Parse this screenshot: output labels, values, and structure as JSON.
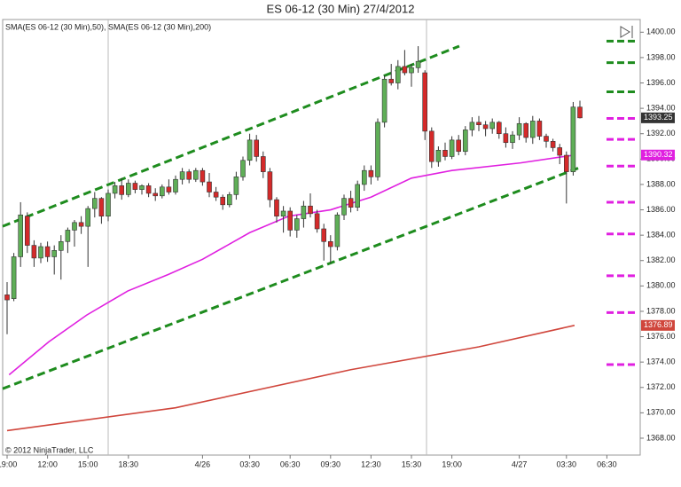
{
  "chart_data": {
    "type": "candlestick",
    "title": "ES 06-12 (30 Min)  27/4/2012",
    "indicator_legend": "SMA(ES 06-12 (30 Min),50), SMA(ES 06-12 (30 Min),200)",
    "copyright": "© 2012 NinjaTrader, LLC",
    "up_color": "#5fae57",
    "down_color": "#d42a2a",
    "categories": [
      "19:00",
      null,
      null,
      null,
      null,
      null,
      "12:00",
      null,
      null,
      null,
      null,
      null,
      "15:00",
      null,
      null,
      null,
      null,
      null,
      "18:30",
      null,
      null,
      null,
      null,
      null,
      null,
      null,
      null,
      null,
      null,
      "4/26",
      null,
      null,
      null,
      null,
      null,
      null,
      "03:30",
      null,
      null,
      null,
      null,
      null,
      "06:30",
      null,
      null,
      null,
      null,
      null,
      "09:30",
      null,
      null,
      null,
      null,
      null,
      "12:30",
      null,
      null,
      null,
      null,
      null,
      "15:30",
      null,
      null,
      null,
      null,
      null,
      "19:00",
      null,
      null,
      null,
      null,
      null,
      null,
      null,
      null,
      null,
      "4/27",
      null,
      null,
      null,
      null,
      null,
      null,
      "03:30",
      null,
      null,
      null,
      null,
      null,
      "06:30"
    ],
    "candles": [
      [
        1379.3,
        1380.3,
        1376.2,
        1378.9
      ],
      [
        1379,
        1382.6,
        1378.8,
        1382.3
      ],
      [
        1382.3,
        1386.6,
        1381.5,
        1385.6
      ],
      [
        1385.5,
        1385.8,
        1382.6,
        1383.2
      ],
      [
        1383.2,
        1383.6,
        1381.5,
        1382.2
      ],
      [
        1382.2,
        1383.4,
        1381.8,
        1383.1
      ],
      [
        1383.1,
        1383.5,
        1381.9,
        1382.3
      ],
      [
        1382.3,
        1383.2,
        1380.9,
        1382.8
      ],
      [
        1382.8,
        1384.0,
        1380.5,
        1383.5
      ],
      [
        1383.5,
        1384.6,
        1382.6,
        1384.4
      ],
      [
        1384.4,
        1385.2,
        1383.1,
        1385.0
      ],
      [
        1385.0,
        1385.5,
        1384.1,
        1384.7
      ],
      [
        1384.7,
        1386.3,
        1381.5,
        1386.1
      ],
      [
        1386.1,
        1387.4,
        1385.4,
        1386.9
      ],
      [
        1386.9,
        1387.0,
        1384.9,
        1385.5
      ],
      [
        1385.5,
        1387.6,
        1385.1,
        1387.3
      ],
      [
        1387.3,
        1388.2,
        1386.9,
        1387.9
      ],
      [
        1387.9,
        1388.5,
        1386.8,
        1387.2
      ],
      [
        1387.2,
        1388.4,
        1387.0,
        1388.1
      ],
      [
        1388.1,
        1388.3,
        1387.3,
        1387.6
      ],
      [
        1387.6,
        1388.0,
        1387.2,
        1387.9
      ],
      [
        1387.9,
        1388.1,
        1387.0,
        1387.3
      ],
      [
        1387.3,
        1387.7,
        1386.7,
        1387.1
      ],
      [
        1387.1,
        1388.0,
        1386.9,
        1387.8
      ],
      [
        1387.8,
        1388.4,
        1387.2,
        1387.4
      ],
      [
        1387.4,
        1388.7,
        1387.2,
        1388.4
      ],
      [
        1388.4,
        1389.3,
        1388.0,
        1389.0
      ],
      [
        1389.0,
        1389.2,
        1388.1,
        1388.4
      ],
      [
        1388.4,
        1389.3,
        1388.2,
        1389.1
      ],
      [
        1389.1,
        1389.3,
        1387.9,
        1388.2
      ],
      [
        1388.2,
        1388.9,
        1387.0,
        1387.4
      ],
      [
        1387.4,
        1387.8,
        1386.7,
        1387.0
      ],
      [
        1387.0,
        1387.2,
        1386.0,
        1386.4
      ],
      [
        1386.4,
        1387.4,
        1386.2,
        1387.2
      ],
      [
        1387.2,
        1389.0,
        1386.8,
        1388.6
      ],
      [
        1388.6,
        1390.2,
        1388.3,
        1389.9
      ],
      [
        1389.9,
        1392.0,
        1389.5,
        1391.5
      ],
      [
        1391.5,
        1391.9,
        1389.8,
        1390.2
      ],
      [
        1390.2,
        1390.6,
        1388.5,
        1389.0
      ],
      [
        1389.0,
        1389.3,
        1386.2,
        1386.8
      ],
      [
        1386.8,
        1387.0,
        1385.0,
        1385.5
      ],
      [
        1385.5,
        1386.3,
        1384.2,
        1385.9
      ],
      [
        1385.9,
        1386.2,
        1383.9,
        1384.4
      ],
      [
        1384.4,
        1385.6,
        1383.8,
        1385.3
      ],
      [
        1385.3,
        1386.7,
        1384.6,
        1386.3
      ],
      [
        1386.3,
        1387.3,
        1385.4,
        1385.7
      ],
      [
        1385.7,
        1386.0,
        1384.2,
        1384.5
      ],
      [
        1384.5,
        1384.9,
        1382.0,
        1383.5
      ],
      [
        1383.5,
        1384.0,
        1381.8,
        1383.1
      ],
      [
        1383.1,
        1385.8,
        1382.8,
        1385.6
      ],
      [
        1385.6,
        1387.2,
        1385.2,
        1386.9
      ],
      [
        1386.9,
        1387.5,
        1385.8,
        1386.2
      ],
      [
        1386.2,
        1388.3,
        1385.9,
        1388.0
      ],
      [
        1388.0,
        1389.5,
        1387.5,
        1389.1
      ],
      [
        1389.1,
        1389.5,
        1388.0,
        1388.6
      ],
      [
        1388.6,
        1393.2,
        1388.3,
        1392.9
      ],
      [
        1392.9,
        1396.6,
        1392.5,
        1396.3
      ],
      [
        1396.3,
        1397.5,
        1395.8,
        1396.0
      ],
      [
        1396.0,
        1397.8,
        1395.5,
        1397.3
      ],
      [
        1397.3,
        1398.6,
        1396.6,
        1396.8
      ],
      [
        1396.8,
        1397.5,
        1395.7,
        1397.2
      ],
      [
        1397.2,
        1398.9,
        1396.8,
        1397.7
      ],
      [
        1396.8,
        1397.0,
        1391.5,
        1392.2
      ],
      [
        1392.2,
        1392.5,
        1389.3,
        1389.8
      ],
      [
        1389.8,
        1391.0,
        1389.4,
        1390.7
      ],
      [
        1390.7,
        1391.3,
        1389.9,
        1390.2
      ],
      [
        1390.2,
        1391.8,
        1390.0,
        1391.5
      ],
      [
        1391.5,
        1391.9,
        1390.3,
        1390.6
      ],
      [
        1390.6,
        1392.6,
        1390.3,
        1392.3
      ],
      [
        1392.3,
        1393.3,
        1391.8,
        1392.9
      ],
      [
        1392.9,
        1393.4,
        1392.2,
        1392.7
      ],
      [
        1392.7,
        1393.0,
        1391.8,
        1392.4
      ],
      [
        1392.4,
        1393.2,
        1392.0,
        1392.9
      ],
      [
        1392.9,
        1393.0,
        1391.6,
        1392.0
      ],
      [
        1392.0,
        1392.5,
        1390.9,
        1391.3
      ],
      [
        1391.3,
        1392.2,
        1390.8,
        1391.9
      ],
      [
        1391.9,
        1393.3,
        1391.5,
        1392.8
      ],
      [
        1392.8,
        1392.9,
        1391.3,
        1391.7
      ],
      [
        1391.7,
        1393.4,
        1391.2,
        1393.0
      ],
      [
        1393.0,
        1393.2,
        1391.5,
        1391.8
      ],
      [
        1391.8,
        1392.0,
        1390.9,
        1391.4
      ],
      [
        1391.4,
        1391.6,
        1390.6,
        1390.9
      ],
      [
        1390.9,
        1391.2,
        1389.6,
        1390.3
      ],
      [
        1390.3,
        1390.6,
        1386.5,
        1389.0
      ],
      [
        1389.0,
        1394.5,
        1388.7,
        1394.1
      ],
      [
        1394.1,
        1394.6,
        1393.2,
        1393.25
      ],
      null,
      null,
      null,
      null
    ],
    "sma": [
      {
        "name": "SMA 50",
        "color": "#e020e0",
        "x": [
          0.3,
          6.2,
          11.8,
          17.9,
          23.9,
          29,
          36,
          41.8,
          48,
          54,
          60,
          66,
          76.2,
          84.2
        ],
        "values": [
          1373.0,
          1375.6,
          1377.7,
          1379.6,
          1380.9,
          1382.1,
          1384.2,
          1385.5,
          1386.0,
          1387.0,
          1388.5,
          1389.1,
          1389.7,
          1390.32
        ]
      },
      {
        "name": "SMA 200",
        "color": "#d0463c",
        "x": [
          0,
          25,
          51,
          70,
          84.2
        ],
        "values": [
          1368.6,
          1370.4,
          1373.4,
          1375.2,
          1376.89
        ]
      }
    ],
    "channels": [
      {
        "color": "#1e8c1e",
        "x": [
          -0.66,
          67.1
        ],
        "values": [
          1384.7,
          1398.9
        ]
      },
      {
        "color": "#1e8c1e",
        "x": [
          -0.66,
          85.3
        ],
        "values": [
          1371.9,
          1389.4
        ]
      }
    ],
    "levels": [
      {
        "value": 1399.3,
        "color": "#1e8c1e"
      },
      {
        "value": 1397.6,
        "color": "#1e8c1e"
      },
      {
        "value": 1395.3,
        "color": "#1e8c1e"
      },
      {
        "value": 1393.2,
        "color": "#e020e0"
      },
      {
        "value": 1391.55,
        "color": "#e020e0"
      },
      {
        "value": 1389.45,
        "color": "#e020e0"
      },
      {
        "value": 1386.6,
        "color": "#e020e0"
      },
      {
        "value": 1384.1,
        "color": "#e020e0"
      },
      {
        "value": 1380.8,
        "color": "#e020e0"
      },
      {
        "value": 1377.9,
        "color": "#e020e0"
      },
      {
        "value": 1373.8,
        "color": "#e020e0"
      }
    ],
    "ylim": [
      1366.67,
      1401.0
    ],
    "yticks": [
      {
        "value": 1368,
        "label": "1368.00"
      },
      {
        "value": 1370,
        "label": "1370.00"
      },
      {
        "value": 1372,
        "label": "1372.00"
      },
      {
        "value": 1374,
        "label": "1374.00"
      },
      {
        "value": 1376,
        "label": "1376.00"
      },
      {
        "value": 1378,
        "label": "1378.00"
      },
      {
        "value": 1380,
        "label": "1380.00"
      },
      {
        "value": 1382,
        "label": "1382.00"
      },
      {
        "value": 1384,
        "label": "1384.00"
      },
      {
        "value": 1386,
        "label": "1386.00"
      },
      {
        "value": 1388,
        "label": "1388.00"
      },
      {
        "value": 1390,
        "label": "1390.00"
      },
      {
        "value": 1392,
        "label": "1392.00"
      },
      {
        "value": 1394,
        "label": "1394.00"
      },
      {
        "value": 1396,
        "label": "1396.00"
      },
      {
        "value": 1398,
        "label": "1398.00"
      },
      {
        "value": 1400,
        "label": "1400.00"
      }
    ]
  }
}
